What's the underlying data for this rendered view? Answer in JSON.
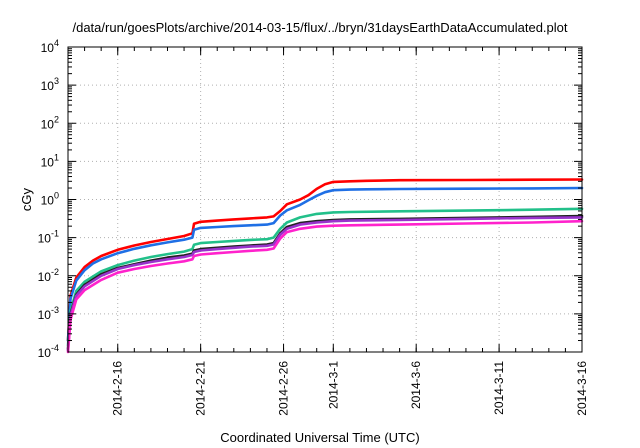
{
  "chart_data": {
    "type": "line",
    "title": "/data/run/goesPlots/archive/2014-03-15/flux/../bryn/31daysEarthDataAccumulated.plot",
    "xlabel": "Coordinated Universal Time (UTC)",
    "ylabel": "cGy",
    "yscale": "log",
    "ylim": [
      0.0001,
      10000
    ],
    "xlim": [
      0,
      31
    ],
    "y_ticks": [
      {
        "value": 0.0001,
        "label": "10",
        "exp": "-4"
      },
      {
        "value": 0.001,
        "label": "10",
        "exp": "-3"
      },
      {
        "value": 0.01,
        "label": "10",
        "exp": "-2"
      },
      {
        "value": 0.1,
        "label": "10",
        "exp": "-1"
      },
      {
        "value": 1,
        "label": "10",
        "exp": "0"
      },
      {
        "value": 10,
        "label": "10",
        "exp": "1"
      },
      {
        "value": 100,
        "label": "10",
        "exp": "2"
      },
      {
        "value": 1000,
        "label": "10",
        "exp": "3"
      },
      {
        "value": 10000,
        "label": "10",
        "exp": "4"
      }
    ],
    "x_ticks": [
      {
        "value": 3,
        "label": "2014-2-16"
      },
      {
        "value": 8,
        "label": "2014-2-21"
      },
      {
        "value": 13,
        "label": "2014-2-26"
      },
      {
        "value": 16,
        "label": "2014-3-1"
      },
      {
        "value": 21,
        "label": "2014-3-6"
      },
      {
        "value": 26,
        "label": "2014-3-11"
      },
      {
        "value": 31,
        "label": "2014-3-16"
      }
    ],
    "grid": true,
    "series": [
      {
        "color": "#ff0000",
        "x": [
          0,
          0.15,
          0.5,
          1,
          1.5,
          2,
          3,
          4,
          5,
          6,
          7,
          7.5,
          7.6,
          8,
          9,
          10,
          11,
          12,
          12.4,
          12.8,
          13.2,
          14,
          14.5,
          15,
          15.5,
          16,
          17,
          18,
          20,
          24,
          28,
          31
        ],
        "y": [
          0.0002,
          0.003,
          0.009,
          0.017,
          0.025,
          0.033,
          0.048,
          0.062,
          0.077,
          0.092,
          0.11,
          0.13,
          0.23,
          0.26,
          0.28,
          0.3,
          0.32,
          0.34,
          0.36,
          0.5,
          0.75,
          1.0,
          1.3,
          1.9,
          2.5,
          2.9,
          3.0,
          3.1,
          3.2,
          3.25,
          3.3,
          3.35
        ]
      },
      {
        "color": "#1f6fe5",
        "x": [
          0,
          0.15,
          0.5,
          1,
          1.5,
          2,
          3,
          4,
          5,
          6,
          7,
          7.5,
          7.6,
          8,
          9,
          10,
          11,
          12,
          12.4,
          12.8,
          13.2,
          14,
          14.5,
          15,
          15.5,
          16,
          17,
          18,
          20,
          24,
          28,
          31
        ],
        "y": [
          0.0002,
          0.0025,
          0.0075,
          0.014,
          0.021,
          0.027,
          0.039,
          0.051,
          0.063,
          0.075,
          0.088,
          0.1,
          0.16,
          0.18,
          0.19,
          0.2,
          0.21,
          0.22,
          0.24,
          0.38,
          0.52,
          0.72,
          0.95,
          1.25,
          1.55,
          1.75,
          1.82,
          1.85,
          1.88,
          1.92,
          1.95,
          2.0
        ]
      },
      {
        "color": "#22c08a",
        "x": [
          0,
          0.15,
          0.5,
          1,
          2,
          3,
          4,
          5,
          6,
          7,
          7.5,
          7.6,
          8,
          9,
          10,
          11,
          12,
          12.4,
          12.8,
          13.2,
          14,
          15,
          16,
          17,
          20,
          24,
          28,
          31
        ],
        "y": [
          0.00015,
          0.0012,
          0.004,
          0.007,
          0.013,
          0.019,
          0.025,
          0.031,
          0.037,
          0.043,
          0.05,
          0.065,
          0.072,
          0.077,
          0.082,
          0.087,
          0.091,
          0.1,
          0.17,
          0.25,
          0.34,
          0.42,
          0.46,
          0.47,
          0.49,
          0.51,
          0.54,
          0.57
        ]
      },
      {
        "color": "#222222",
        "x": [
          0,
          0.15,
          0.5,
          1,
          2,
          3,
          4,
          5,
          6,
          7,
          7.5,
          7.6,
          8,
          9,
          10,
          11,
          12,
          12.4,
          12.8,
          13.2,
          14,
          15,
          16,
          17,
          20,
          24,
          28,
          31
        ],
        "y": [
          0.00012,
          0.001,
          0.0032,
          0.0058,
          0.011,
          0.016,
          0.02,
          0.025,
          0.03,
          0.034,
          0.038,
          0.046,
          0.05,
          0.054,
          0.058,
          0.062,
          0.066,
          0.072,
          0.13,
          0.19,
          0.24,
          0.27,
          0.29,
          0.3,
          0.31,
          0.33,
          0.35,
          0.37
        ]
      },
      {
        "color": "#9933cc",
        "x": [
          0,
          0.15,
          0.5,
          1,
          2,
          3,
          4,
          5,
          6,
          7,
          7.5,
          7.6,
          8,
          9,
          10,
          11,
          12,
          12.4,
          12.8,
          13.2,
          14,
          15,
          16,
          17,
          20,
          24,
          28,
          31
        ],
        "y": [
          0.00011,
          0.0009,
          0.003,
          0.0053,
          0.01,
          0.015,
          0.019,
          0.023,
          0.027,
          0.031,
          0.035,
          0.042,
          0.046,
          0.05,
          0.054,
          0.058,
          0.061,
          0.066,
          0.12,
          0.17,
          0.22,
          0.25,
          0.27,
          0.28,
          0.29,
          0.31,
          0.33,
          0.34
        ]
      },
      {
        "color": "#ff22cc",
        "x": [
          0,
          0.15,
          0.5,
          1,
          2,
          3,
          4,
          5,
          6,
          7,
          7.5,
          7.6,
          8,
          9,
          10,
          11,
          12,
          12.4,
          12.8,
          13.2,
          14,
          15,
          16,
          17,
          20,
          24,
          28,
          31
        ],
        "y": [
          0.0001,
          0.0007,
          0.0024,
          0.0042,
          0.0078,
          0.012,
          0.015,
          0.018,
          0.021,
          0.024,
          0.027,
          0.033,
          0.036,
          0.039,
          0.042,
          0.045,
          0.048,
          0.052,
          0.095,
          0.14,
          0.17,
          0.195,
          0.205,
          0.21,
          0.22,
          0.235,
          0.25,
          0.27
        ]
      }
    ]
  }
}
